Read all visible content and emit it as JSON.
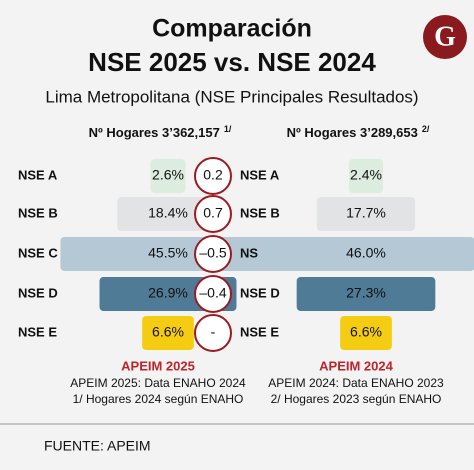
{
  "title": "Comparación",
  "subtitle": "NSE 2025 vs. NSE 2024",
  "caption": "Lima Metropolitana (NSE Principales Resultados)",
  "logo": "G",
  "chart_data": [
    {
      "type": "bar",
      "title": "Nº Hogares 3’362,157",
      "title_note": "1/",
      "categories": [
        "NSE A",
        "NSE B",
        "NSE C",
        "NSE D",
        "NSE E"
      ],
      "values": [
        2.6,
        18.4,
        45.5,
        26.9,
        6.6
      ],
      "value_labels": [
        "2.6%",
        "18.4%",
        "45.5%",
        "26.9%",
        "6.6%"
      ],
      "colors": [
        "#dcecdf",
        "#e1e3e5",
        "#b5c8d5",
        "#4f7b96",
        "#f4cd13"
      ],
      "footer_title": "APEIM 2025",
      "notes": [
        "APEIM 2025: Data ENAHO 2024",
        "1/ Hogares 2024 según ENAHO"
      ]
    },
    {
      "type": "bar",
      "title": "Nº Hogares 3’289,653",
      "title_note": "2/",
      "categories": [
        "NSE A",
        "NSE B",
        "NSE C",
        "NSE D",
        "NSE E"
      ],
      "values": [
        2.4,
        17.7,
        46.0,
        27.3,
        6.6
      ],
      "value_labels": [
        "2.4%",
        "17.7%",
        "46.0%",
        "27.3%",
        "6.6%"
      ],
      "colors": [
        "#dcecdf",
        "#e1e3e5",
        "#b5c8d5",
        "#4f7b96",
        "#f4cd13"
      ],
      "footer_title": "APEIM 2024",
      "notes": [
        "APEIM 2024: Data ENAHO 2023",
        "2/ Hogares 2023 según ENAHO"
      ]
    }
  ],
  "differences": {
    "values": [
      0.2,
      0.7,
      -0.5,
      -0.4,
      null
    ],
    "value_labels": [
      "0.2",
      "0.7",
      "–0.5",
      "–0.4",
      "-"
    ]
  },
  "source": "FUENTE: APEIM"
}
